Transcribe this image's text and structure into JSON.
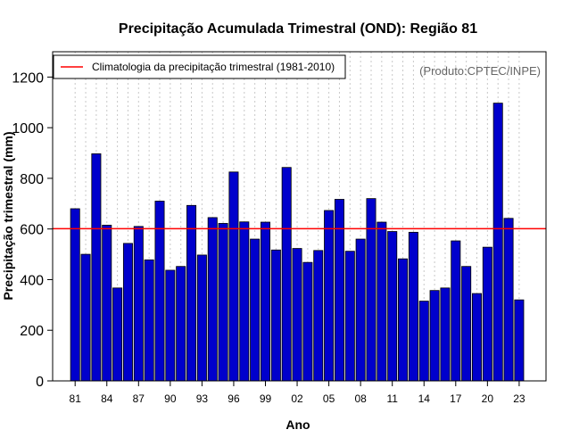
{
  "chart_data": {
    "type": "bar",
    "title": "Precipitação Acumulada Trimestral (OND): Região 81",
    "xlabel": "Ano",
    "ylabel": "Precipitação trimestral (mm)",
    "ylim": [
      0,
      1300
    ],
    "yticks": [
      0,
      200,
      400,
      600,
      800,
      1000,
      1200
    ],
    "categories": [
      "1981",
      "1982",
      "1983",
      "1984",
      "1985",
      "1986",
      "1987",
      "1988",
      "1989",
      "1990",
      "1991",
      "1992",
      "1993",
      "1994",
      "1995",
      "1996",
      "1997",
      "1998",
      "1999",
      "2000",
      "2001",
      "2002",
      "2003",
      "2004",
      "2005",
      "2006",
      "2007",
      "2008",
      "2009",
      "2010",
      "2011",
      "2012",
      "2013",
      "2014",
      "2015",
      "2016",
      "2017",
      "2018",
      "2019",
      "2020",
      "2021",
      "2022",
      "2023"
    ],
    "xtick_labels": [
      "81",
      "84",
      "87",
      "90",
      "93",
      "96",
      "99",
      "02",
      "05",
      "08",
      "11",
      "14",
      "17",
      "20",
      "23"
    ],
    "xtick_every": 3,
    "values": [
      680,
      500,
      897,
      615,
      367,
      543,
      610,
      478,
      710,
      437,
      452,
      693,
      497,
      645,
      622,
      825,
      628,
      560,
      627,
      517,
      843,
      523,
      468,
      515,
      673,
      717,
      512,
      560,
      720,
      627,
      590,
      482,
      587,
      315,
      357,
      367,
      553,
      452,
      345,
      528,
      1097,
      642,
      320
    ],
    "bar_color": "#0000CC",
    "climatology": {
      "value": 601,
      "color": "#FF0000",
      "label": "Climatologia da precipitação trimestral (1981-2010)"
    },
    "legend_position": "top-left",
    "grid": "vertical dotted",
    "credit": "(Produto:CPTEC/INPE)"
  }
}
